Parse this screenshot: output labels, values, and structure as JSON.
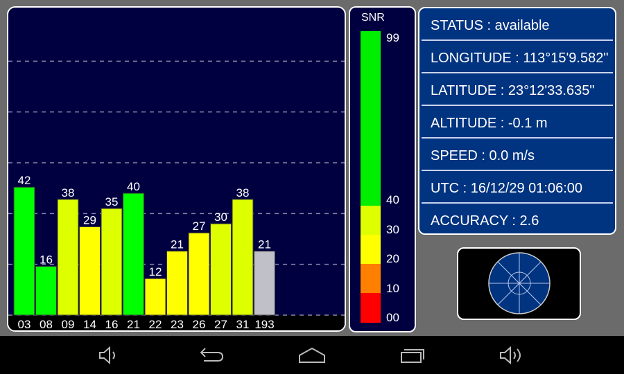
{
  "chart_data": {
    "type": "bar",
    "categories": [
      "03",
      "08",
      "09",
      "14",
      "16",
      "21",
      "22",
      "23",
      "26",
      "27",
      "31",
      "193"
    ],
    "values": [
      42,
      16,
      38,
      29,
      35,
      40,
      12,
      21,
      27,
      30,
      38,
      21
    ],
    "colors": [
      "#00ff00",
      "#00ff00",
      "#ddff00",
      "#ffff00",
      "#ddff00",
      "#00ff00",
      "#ffff00",
      "#ffff00",
      "#ffff00",
      "#ddff00",
      "#ddff00",
      "#c0c0c8"
    ],
    "ylim": [
      0,
      100
    ],
    "grid": true
  },
  "snr": {
    "title": "SNR",
    "labels": [
      "99",
      "40",
      "30",
      "20",
      "10",
      "00"
    ],
    "colors": {
      "green": "#00ee00",
      "yellowgreen": "#ddff00",
      "yellow": "#ffff00",
      "orange": "#ff8000",
      "red": "#ff0000"
    }
  },
  "info": {
    "rows": [
      "STATUS : available",
      "LONGITUDE : 113°15'9.582\"",
      "LATITUDE : 23°12'33.635\"",
      "ALTITUDE : -0.1 m",
      "SPEED : 0.0 m/s",
      "UTC : 16/12/29 01:06:00",
      "ACCURACY : 2.6"
    ]
  },
  "nav": {
    "icons": [
      "volume-down-icon",
      "back-icon",
      "home-icon",
      "recents-icon",
      "volume-up-icon"
    ]
  }
}
